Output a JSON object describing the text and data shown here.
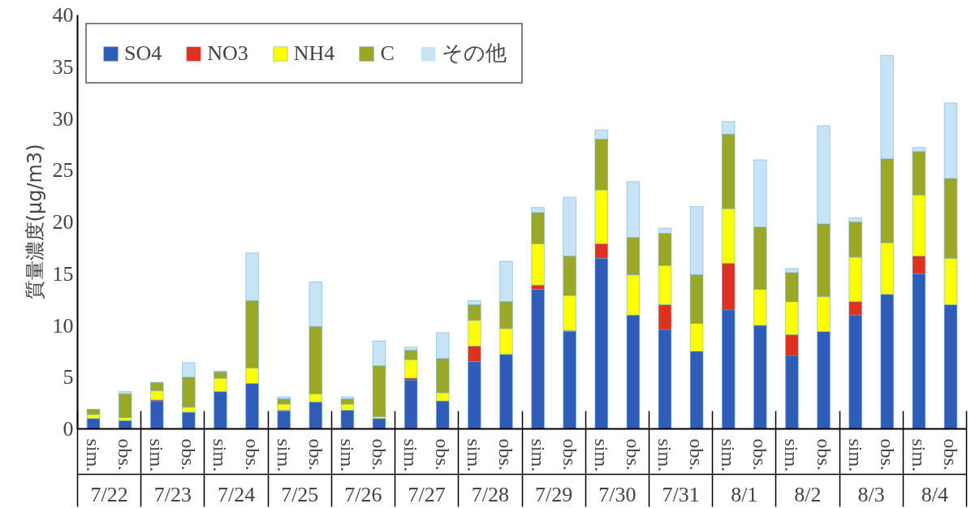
{
  "chart_data": {
    "type": "bar",
    "stacked": true,
    "ylabel": "質量濃度(μg/m3)",
    "categories": [
      "sim.",
      "obs.",
      "sim.",
      "obs.",
      "sim.",
      "obs.",
      "sim.",
      "obs.",
      "sim.",
      "obs.",
      "sim.",
      "obs.",
      "sim.",
      "obs.",
      "sim.",
      "obs.",
      "sim.",
      "obs.",
      "sim.",
      "obs.",
      "sim.",
      "obs.",
      "sim.",
      "obs.",
      "sim.",
      "obs.",
      "sim.",
      "obs."
    ],
    "annotations": [
      "7/22",
      "7/23",
      "7/24",
      "7/25",
      "7/26",
      "7/27",
      "7/28",
      "7/29",
      "7/30",
      "7/31",
      "8/1",
      "8/2",
      "8/3",
      "8/4"
    ],
    "series": [
      {
        "name": "SO4",
        "color": "#2f5cb8",
        "values": [
          1.0,
          0.8,
          2.7,
          1.6,
          3.6,
          4.4,
          1.7,
          2.6,
          1.8,
          1.0,
          4.7,
          2.7,
          6.5,
          7.2,
          13.5,
          9.4,
          16.5,
          11.0,
          9.6,
          7.5,
          11.5,
          10.0,
          7.1,
          9.4,
          11.0,
          13.0,
          15.0,
          12.0
        ]
      },
      {
        "name": "NO3",
        "color": "#e03020",
        "values": [
          0,
          0,
          0.1,
          0,
          0,
          0,
          0.1,
          0,
          0,
          0,
          0.2,
          0,
          1.5,
          0,
          0.4,
          0.1,
          1.4,
          0,
          2.4,
          0,
          4.5,
          0,
          2.0,
          0,
          1.3,
          0,
          1.7,
          0
        ]
      },
      {
        "name": "NH4",
        "color": "#ffff00",
        "values": [
          0.4,
          0.3,
          0.9,
          0.5,
          1.3,
          1.5,
          0.6,
          0.8,
          0.6,
          0.2,
          1.8,
          0.8,
          2.5,
          2.5,
          4.0,
          3.4,
          5.2,
          3.9,
          3.8,
          2.7,
          5.3,
          3.5,
          3.2,
          3.4,
          4.3,
          5.0,
          5.9,
          4.5
        ]
      },
      {
        "name": "C",
        "color": "#9aa826",
        "values": [
          0.5,
          2.3,
          0.8,
          2.9,
          0.6,
          6.5,
          0.5,
          6.5,
          0.5,
          4.9,
          0.9,
          3.3,
          1.5,
          2.6,
          3.0,
          3.8,
          4.9,
          3.6,
          3.1,
          4.7,
          7.2,
          6.0,
          2.8,
          7.0,
          3.4,
          8.1,
          4.2,
          7.7
        ]
      },
      {
        "name": "その他",
        "color": "#c6e4f5",
        "values": [
          0,
          0.2,
          0,
          1.4,
          0.1,
          4.6,
          0.2,
          4.3,
          0.2,
          2.4,
          0.3,
          2.5,
          0.4,
          3.9,
          0.5,
          5.7,
          0.9,
          5.4,
          0.5,
          6.6,
          1.2,
          6.5,
          0.4,
          9.5,
          0.4,
          10.0,
          0.4,
          7.3
        ]
      }
    ],
    "ylim": [
      0,
      40
    ],
    "yticks": [
      0,
      5,
      10,
      15,
      20,
      25,
      30,
      35,
      40
    ],
    "legend": "top left"
  }
}
